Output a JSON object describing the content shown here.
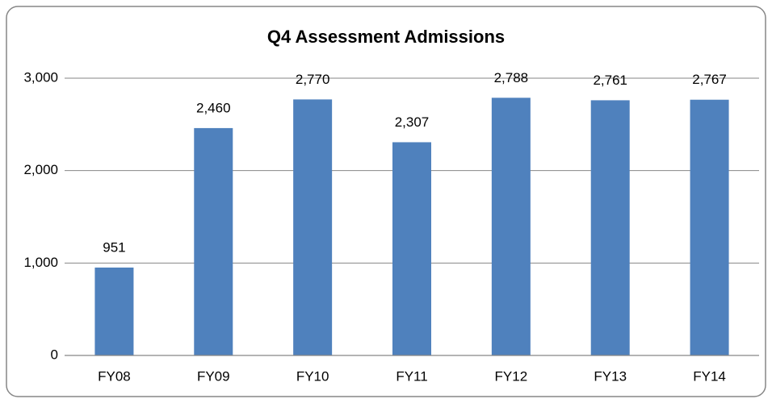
{
  "chart_data": {
    "type": "bar",
    "title": "Q4 Assessment Admissions",
    "categories": [
      "FY08",
      "FY09",
      "FY10",
      "FY11",
      "FY12",
      "FY13",
      "FY14"
    ],
    "values": [
      951,
      2460,
      2770,
      2307,
      2788,
      2761,
      2767
    ],
    "value_labels": [
      "951",
      "2,460",
      "2,770",
      "2,307",
      "2,788",
      "2,761",
      "2,767"
    ],
    "color": "#4f81bd",
    "ylim": [
      0,
      3000
    ],
    "yticks": [
      0,
      {
        "value": 1000,
        "label": "1,000"
      },
      {
        "value": 2000,
        "label": "2,000"
      },
      {
        "value": 3000,
        "label": "3,000"
      }
    ],
    "grid": true
  }
}
